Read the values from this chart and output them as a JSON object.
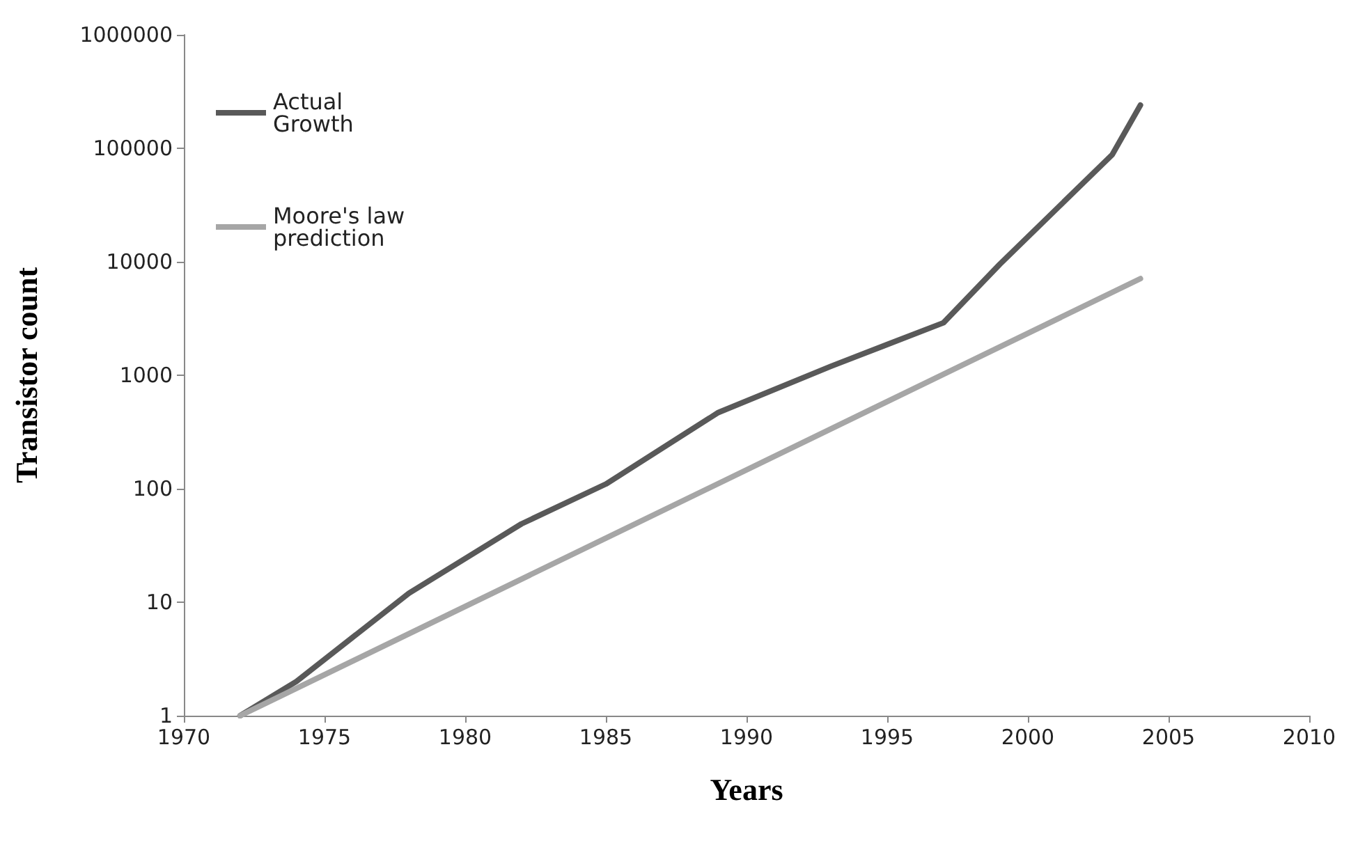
{
  "chart_data": {
    "type": "line",
    "xlabel": "Years",
    "ylabel": "Transistor count",
    "log": "y",
    "grid": false,
    "legend": "top left",
    "marker": "none",
    "line_style": "solid",
    "xlim": [
      1970,
      2010
    ],
    "xticks": [
      1970,
      1975,
      1980,
      1985,
      1990,
      1995,
      2000,
      2005,
      2010
    ],
    "ylim": [
      1,
      1000000
    ],
    "yticks": [
      1,
      10,
      100,
      1000,
      10000,
      100000,
      1000000
    ],
    "series": [
      {
        "name": "Actual Growth",
        "color": "#595959",
        "x": [
          1972,
          1974,
          1978,
          1982,
          1985,
          1989,
          1993,
          1997,
          1999,
          2003,
          2004
        ],
        "values": [
          1,
          2,
          12,
          49,
          110,
          470,
          1200,
          2900,
          9500,
          88000,
          240000
        ]
      },
      {
        "name": "Moore's law prediction",
        "color": "#a6a6a6",
        "x": [
          1972,
          2004
        ],
        "values": [
          1,
          7100
        ]
      }
    ]
  }
}
